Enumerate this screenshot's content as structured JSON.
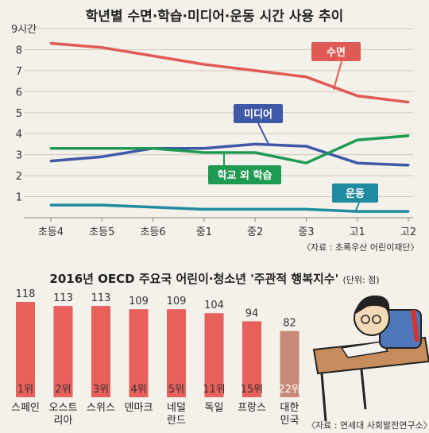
{
  "chart_data": [
    {
      "type": "line",
      "title": "학년별 수면·학습·미디어·운동 시간 사용 추이",
      "y_unit_label": "9시간",
      "y_ticks": [
        "1",
        "2",
        "3",
        "4",
        "5",
        "6",
        "7",
        "8"
      ],
      "ylim": [
        0,
        9
      ],
      "categories": [
        "초등4",
        "초등5",
        "초등6",
        "중1",
        "중2",
        "중3",
        "고1",
        "고2"
      ],
      "series": [
        {
          "name": "수면",
          "color": "#e05a55",
          "values": [
            8.3,
            8.1,
            7.7,
            7.3,
            7.0,
            6.7,
            5.8,
            5.5
          ]
        },
        {
          "name": "미디어",
          "color": "#3f58a8",
          "values": [
            2.7,
            2.9,
            3.3,
            3.3,
            3.5,
            3.4,
            2.6,
            2.5
          ]
        },
        {
          "name": "학교 외 학습",
          "color": "#1f9a52",
          "values": [
            3.3,
            3.3,
            3.3,
            3.1,
            3.1,
            2.6,
            3.7,
            3.9
          ]
        },
        {
          "name": "운동",
          "color": "#1f8ba0",
          "values": [
            0.6,
            0.6,
            0.5,
            0.4,
            0.4,
            0.4,
            0.3,
            0.3
          ]
        }
      ],
      "source": "〈자료 : 초록우산 어린이재단〉",
      "grid": true
    },
    {
      "type": "bar",
      "title": "2016년 OECD 주요국 어린이·청소년 '주관적 행복지수'",
      "unit": "(단위: 점)",
      "categories": [
        "스페인",
        "오스트리아",
        "스위스",
        "덴마크",
        "네덜란드",
        "독일",
        "프랑스",
        "대한민국"
      ],
      "category_lines": [
        [
          "스페인"
        ],
        [
          "오스트",
          "리아"
        ],
        [
          "스위스"
        ],
        [
          "덴마크"
        ],
        [
          "네덜",
          "란드"
        ],
        [
          "독일"
        ],
        [
          "프랑스"
        ],
        [
          "대한",
          "민국"
        ]
      ],
      "values": [
        118,
        113,
        113,
        109,
        109,
        104,
        94,
        82
      ],
      "ranks": [
        "1위",
        "2위",
        "3위",
        "4위",
        "5위",
        "11위",
        "15위",
        "22위"
      ],
      "bar_color": "#e8605c",
      "highlight_color": "#c98a7a",
      "source": "〈자료 : 연세대 사회발전연구소〉"
    }
  ]
}
